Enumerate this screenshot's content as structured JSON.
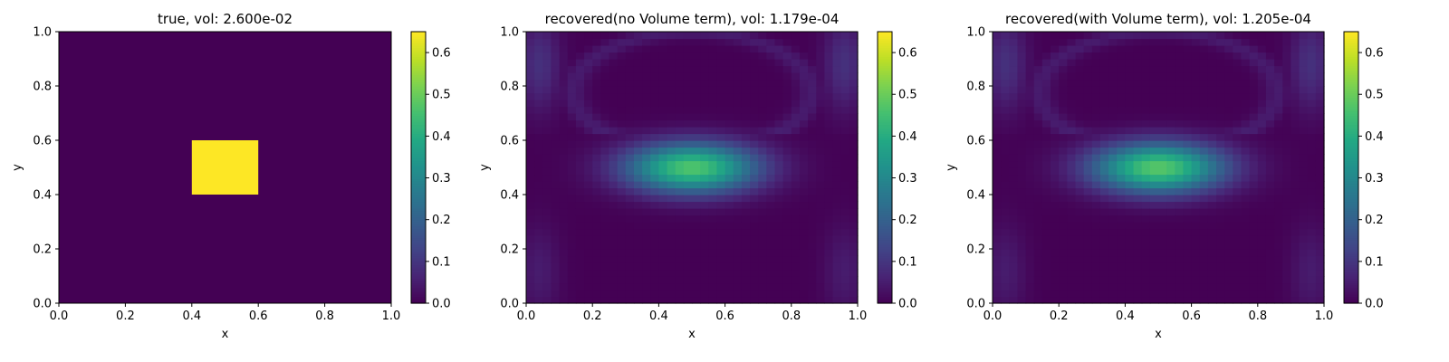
{
  "chart_data": [
    {
      "type": "heatmap",
      "title": "true, vol: 2.600e-02",
      "xlabel": "x",
      "ylabel": "y",
      "xlim": [
        0,
        1
      ],
      "ylim": [
        0,
        1
      ],
      "xticks": [
        "0.0",
        "0.2",
        "0.4",
        "0.6",
        "0.8",
        "1.0"
      ],
      "yticks": [
        "0.0",
        "0.2",
        "0.4",
        "0.6",
        "0.8",
        "1.0"
      ],
      "field": {
        "kind": "box",
        "x": [
          0.4,
          0.6
        ],
        "y": [
          0.4,
          0.6
        ],
        "value": 0.65,
        "background": 0.0
      },
      "colorbar": {
        "colormap": "viridis",
        "range": [
          0.0,
          0.65
        ],
        "ticks": [
          "0.0",
          "0.1",
          "0.2",
          "0.3",
          "0.4",
          "0.5",
          "0.6"
        ]
      }
    },
    {
      "type": "heatmap",
      "title": "recovered(no Volume term), vol: 1.179e-04",
      "xlabel": "x",
      "ylabel": "y",
      "xlim": [
        0,
        1
      ],
      "ylim": [
        0,
        1
      ],
      "xticks": [
        "0.0",
        "0.2",
        "0.4",
        "0.6",
        "0.8",
        "1.0"
      ],
      "yticks": [
        "0.0",
        "0.2",
        "0.4",
        "0.6",
        "0.8",
        "1.0"
      ],
      "field": {
        "kind": "recovered",
        "grid": 40,
        "peak": 0.47,
        "center": [
          0.5,
          0.5
        ],
        "sigma": [
          0.14,
          0.065
        ],
        "halo": 0.09
      },
      "colorbar": {
        "colormap": "viridis",
        "range": [
          0.0,
          0.65
        ],
        "ticks": [
          "0.0",
          "0.1",
          "0.2",
          "0.3",
          "0.4",
          "0.5",
          "0.6"
        ]
      }
    },
    {
      "type": "heatmap",
      "title": "recovered(with Volume term), vol: 1.205e-04",
      "xlabel": "x",
      "ylabel": "y",
      "xlim": [
        0,
        1
      ],
      "ylim": [
        0,
        1
      ],
      "xticks": [
        "0.0",
        "0.2",
        "0.4",
        "0.6",
        "0.8",
        "1.0"
      ],
      "yticks": [
        "0.0",
        "0.2",
        "0.4",
        "0.6",
        "0.8",
        "1.0"
      ],
      "field": {
        "kind": "recovered",
        "grid": 40,
        "peak": 0.48,
        "center": [
          0.5,
          0.5
        ],
        "sigma": [
          0.14,
          0.065
        ],
        "halo": 0.09
      },
      "colorbar": {
        "colormap": "viridis",
        "range": [
          0.0,
          0.65
        ],
        "ticks": [
          "0.0",
          "0.1",
          "0.2",
          "0.3",
          "0.4",
          "0.5",
          "0.6"
        ]
      }
    }
  ]
}
